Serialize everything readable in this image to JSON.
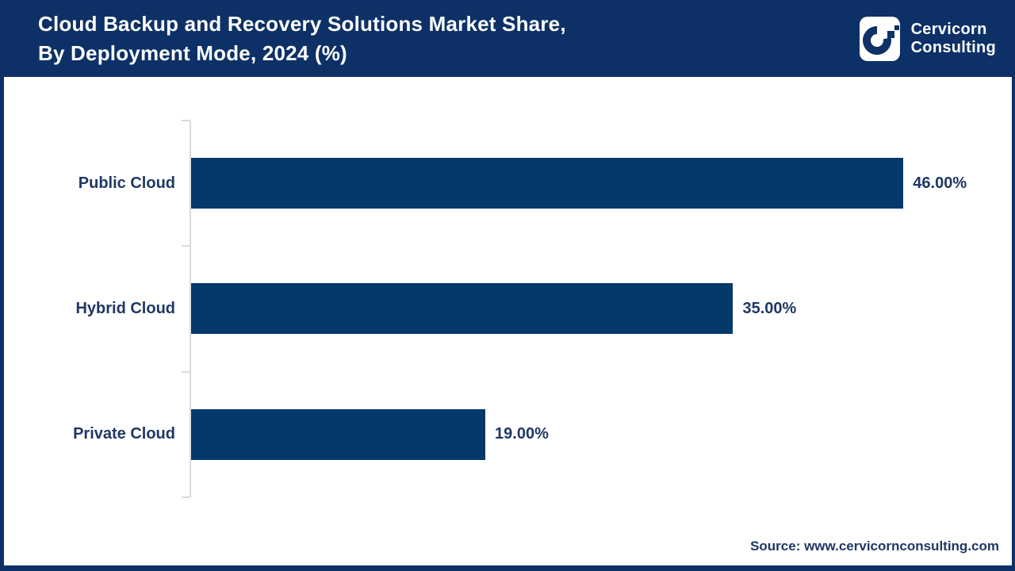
{
  "header": {
    "title_line1": "Cloud Backup and Recovery Solutions Market Share,",
    "title_line2": "By Deployment Mode, 2024 (%)",
    "logo": {
      "icon": "cervicorn-c-logo",
      "brand_line1": "Cervicorn",
      "brand_line2": "Consulting"
    }
  },
  "chart_data": {
    "type": "bar",
    "orientation": "horizontal",
    "title": "Cloud Backup and Recovery Solutions Market Share, By Deployment Mode, 2024 (%)",
    "categories": [
      "Public Cloud",
      "Hybrid Cloud",
      "Private Cloud"
    ],
    "values": [
      46,
      35,
      19
    ],
    "value_labels": [
      "46.00%",
      "35.00%",
      "19.00%"
    ],
    "xlabel": "",
    "ylabel": "",
    "xlim": [
      0,
      53
    ],
    "grid": false,
    "legend": false,
    "bar_color": "#05386b",
    "label_color": "#1f3864",
    "axis_color": "#d9d9d9"
  },
  "footer": {
    "source_text": "Source: www.cervicornconsulting.com"
  },
  "colors": {
    "header_bg": "#0d3166",
    "frame_border": "#0d3166",
    "logo_badge_bg": "#ffffff",
    "logo_glyph": "#0d3166",
    "title_text": "#ffffff"
  }
}
